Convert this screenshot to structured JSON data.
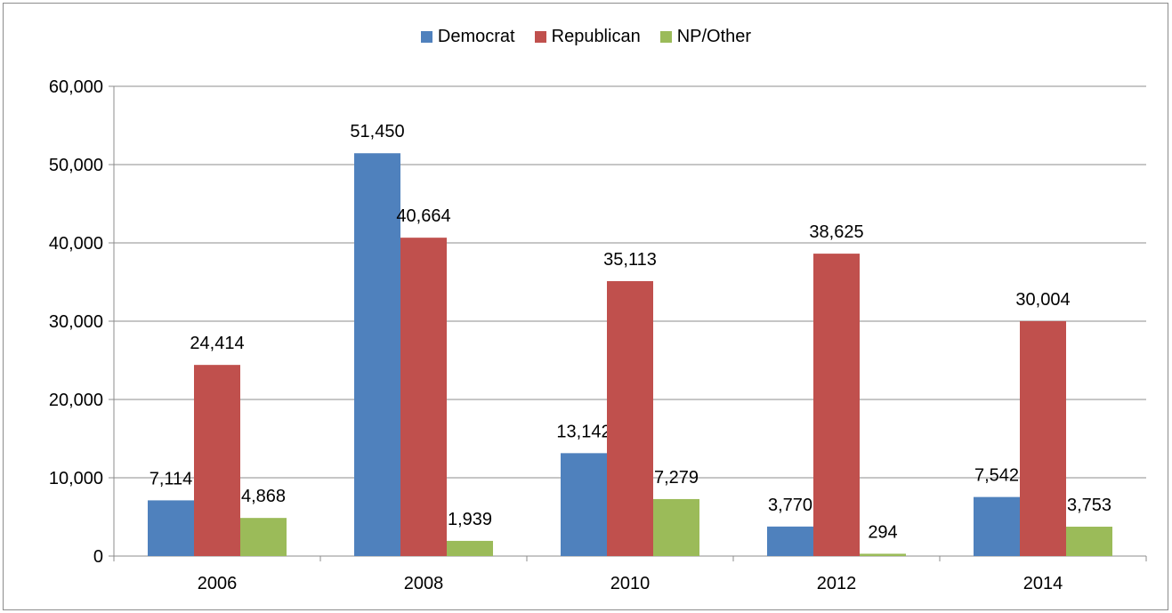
{
  "chart_data": {
    "type": "bar",
    "categories": [
      "2006",
      "2008",
      "2010",
      "2012",
      "2014"
    ],
    "series": [
      {
        "name": "Democrat",
        "color": "#4f81bd",
        "values": [
          7114,
          51450,
          13142,
          3770,
          7542
        ],
        "labels": [
          "7,114",
          "51,450",
          "13,142",
          "3,770",
          "7,542"
        ]
      },
      {
        "name": "Republican",
        "color": "#c0504d",
        "values": [
          24414,
          40664,
          35113,
          38625,
          30004
        ],
        "labels": [
          "24,414",
          "40,664",
          "35,113",
          "38,625",
          "30,004"
        ]
      },
      {
        "name": "NP/Other",
        "color": "#9bbb59",
        "values": [
          4868,
          1939,
          7279,
          294,
          3753
        ],
        "labels": [
          "4,868",
          "1,939",
          "7,279",
          "294",
          "3,753"
        ]
      }
    ],
    "ylim": [
      0,
      60000
    ],
    "yticks": [
      "0",
      "10,000",
      "20,000",
      "30,000",
      "40,000",
      "50,000",
      "60,000"
    ],
    "grid": true,
    "legend_position": "top",
    "title": "",
    "xlabel": "",
    "ylabel": ""
  }
}
